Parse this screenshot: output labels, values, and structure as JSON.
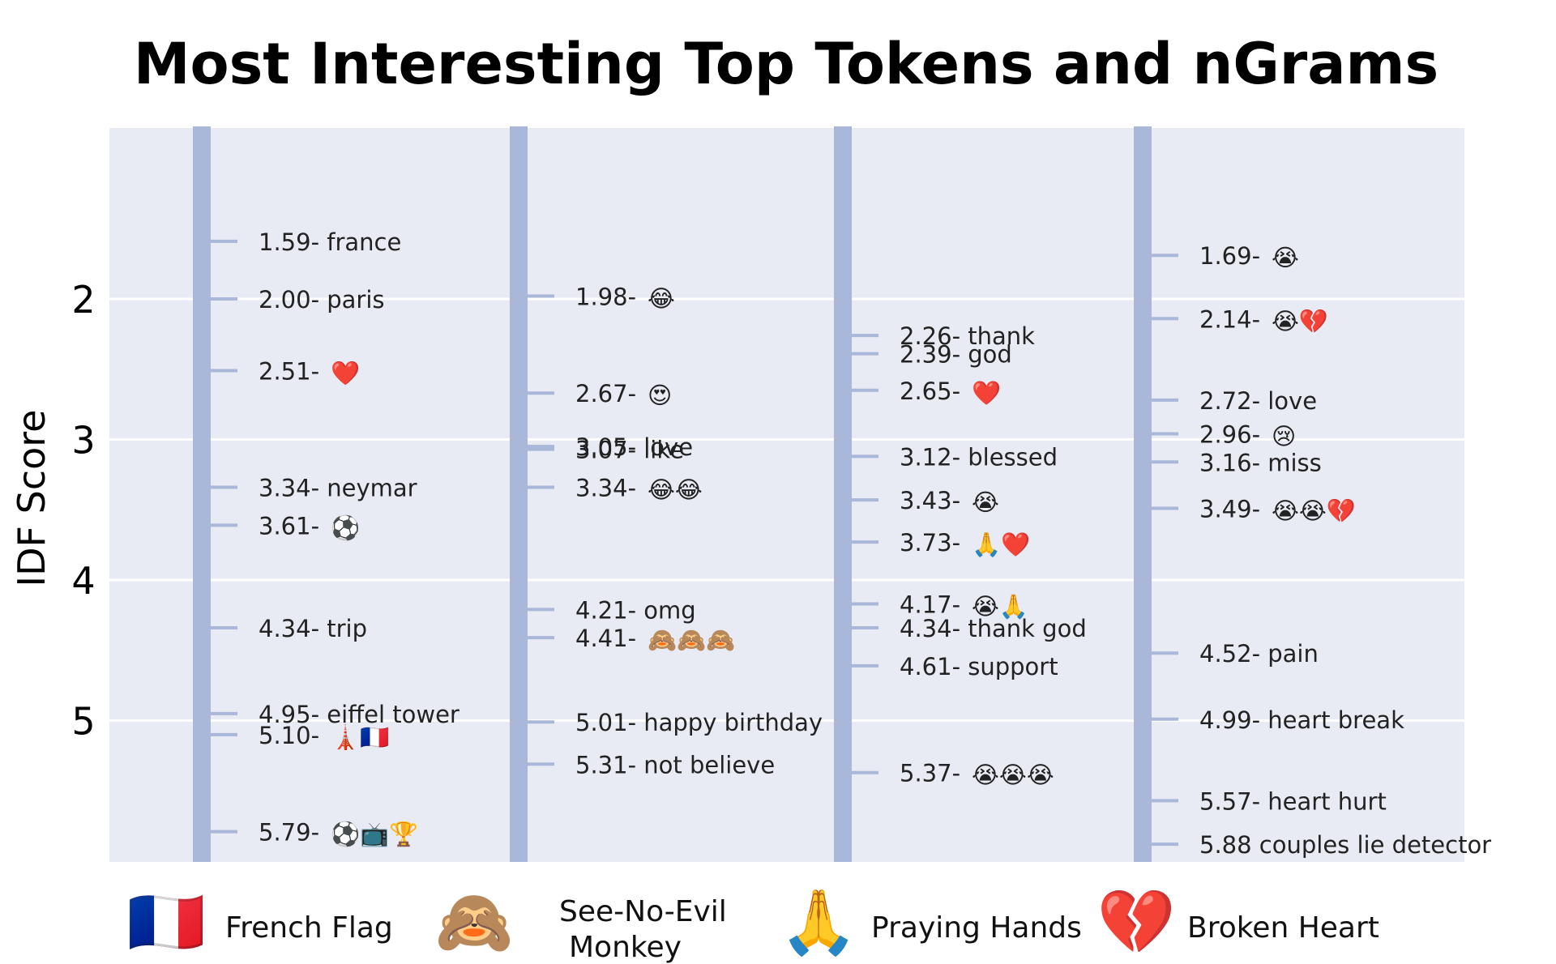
{
  "chart_data": {
    "type": "scatter",
    "title": "Most Interesting Top Tokens and nGrams",
    "ylabel": "IDF Score",
    "ylim": [
      0.8,
      6.0
    ],
    "yticks": [
      2,
      3,
      4,
      5
    ],
    "y_inverted": true,
    "grid": true,
    "series": [
      {
        "values": [
          {
            "score": 1.59,
            "label": "1.59- france",
            "emoji": ""
          },
          {
            "score": 2.0,
            "label": "2.00- paris",
            "emoji": ""
          },
          {
            "score": 2.51,
            "label": "2.51-",
            "emoji": "❤️"
          },
          {
            "score": 3.34,
            "label": "3.34- neymar",
            "emoji": ""
          },
          {
            "score": 3.61,
            "label": "3.61-",
            "emoji": "⚽"
          },
          {
            "score": 4.34,
            "label": "4.34- trip",
            "emoji": ""
          },
          {
            "score": 4.95,
            "label": "4.95- eiffel tower",
            "emoji": ""
          },
          {
            "score": 5.1,
            "label": "5.10-",
            "emoji": "🗼🇫🇷"
          },
          {
            "score": 5.79,
            "label": "5.79-",
            "emoji": "⚽📺🏆"
          }
        ]
      },
      {
        "values": [
          {
            "score": 1.98,
            "label": "1.98-",
            "emoji": "😂"
          },
          {
            "score": 2.67,
            "label": "2.67-",
            "emoji": "😍"
          },
          {
            "score": 3.05,
            "label": "3.05- love",
            "emoji": ""
          },
          {
            "score": 3.07,
            "label": "3.07- like",
            "emoji": ""
          },
          {
            "score": 3.34,
            "label": "3.34-",
            "emoji": "😂😂"
          },
          {
            "score": 4.21,
            "label": "4.21- omg",
            "emoji": ""
          },
          {
            "score": 4.41,
            "label": "4.41-",
            "emoji": "🙈🙈🙈"
          },
          {
            "score": 5.01,
            "label": "5.01- happy birthday",
            "emoji": ""
          },
          {
            "score": 5.31,
            "label": "5.31- not believe",
            "emoji": ""
          }
        ]
      },
      {
        "values": [
          {
            "score": 2.26,
            "label": "2.26- thank",
            "emoji": ""
          },
          {
            "score": 2.39,
            "label": "2.39- god",
            "emoji": ""
          },
          {
            "score": 2.65,
            "label": "2.65-",
            "emoji": "❤️"
          },
          {
            "score": 3.12,
            "label": "3.12- blessed",
            "emoji": ""
          },
          {
            "score": 3.43,
            "label": "3.43-",
            "emoji": "😭"
          },
          {
            "score": 3.73,
            "label": "3.73-",
            "emoji": "🙏❤️"
          },
          {
            "score": 4.17,
            "label": "4.17-",
            "emoji": "😭🙏"
          },
          {
            "score": 4.34,
            "label": "4.34- thank god",
            "emoji": ""
          },
          {
            "score": 4.61,
            "label": "4.61- support",
            "emoji": ""
          },
          {
            "score": 5.37,
            "label": "5.37-",
            "emoji": "😭😭😭"
          }
        ]
      },
      {
        "values": [
          {
            "score": 1.69,
            "label": "1.69-",
            "emoji": "😭"
          },
          {
            "score": 2.14,
            "label": "2.14-",
            "emoji": "😭💔"
          },
          {
            "score": 2.72,
            "label": "2.72- love",
            "emoji": ""
          },
          {
            "score": 2.96,
            "label": "2.96-",
            "emoji": "😢"
          },
          {
            "score": 3.16,
            "label": "3.16- miss",
            "emoji": ""
          },
          {
            "score": 3.49,
            "label": "3.49-",
            "emoji": "😭😭💔"
          },
          {
            "score": 4.52,
            "label": "4.52- pain",
            "emoji": ""
          },
          {
            "score": 4.99,
            "label": "4.99- heart break",
            "emoji": ""
          },
          {
            "score": 5.57,
            "label": "5.57- heart hurt",
            "emoji": ""
          },
          {
            "score": 5.88,
            "label": "5.88 couples lie detector",
            "emoji": ""
          }
        ]
      }
    ],
    "legend": [
      {
        "emoji": "🇫🇷",
        "label": "French Flag"
      },
      {
        "emoji": "🙈",
        "label": "See-No-Evil\nMonkey"
      },
      {
        "emoji": "🙏",
        "label": "Praying Hands"
      },
      {
        "emoji": "💔",
        "label": "Broken Heart"
      }
    ],
    "colors": {
      "plot_bg": "#e8eaf4",
      "axis_bar": "#a9b7d8",
      "gridline": "#ffffff",
      "tick": "#a9b7d8"
    }
  }
}
